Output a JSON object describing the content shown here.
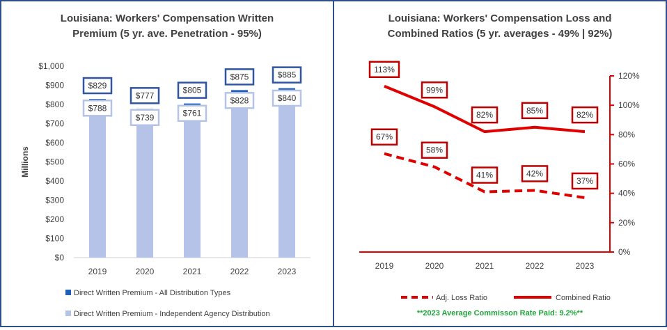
{
  "chart_data": [
    {
      "type": "bar",
      "title_lines": [
        "Louisiana: Workers' Compensation Written",
        "Premium (5 yr. ave. Penetration - 95%)"
      ],
      "ylabel": "Millions",
      "ylim": [
        0,
        1000
      ],
      "yticks": [
        "$0",
        "$100",
        "$200",
        "$300",
        "$400",
        "$500",
        "$600",
        "$700",
        "$800",
        "$900",
        "$1,000"
      ],
      "categories": [
        "2019",
        "2020",
        "2021",
        "2022",
        "2023"
      ],
      "series": [
        {
          "name": "Direct Written Premium - All Distribution Types",
          "values": [
            829,
            777,
            805,
            875,
            885
          ],
          "labels": [
            "$829",
            "$777",
            "$805",
            "$875",
            "$885"
          ],
          "color": "#1F5FB8"
        },
        {
          "name": "Direct Written Premium - Independent Agency Distribution",
          "values": [
            788,
            739,
            761,
            828,
            840
          ],
          "labels": [
            "$788",
            "$739",
            "$761",
            "$828",
            "$840"
          ],
          "color": "#B4C3E7"
        }
      ]
    },
    {
      "type": "line",
      "title_lines": [
        "Louisiana: Workers' Compensation Loss and",
        "Combined Ratios (5 yr. averages - 49% | 92%)"
      ],
      "ylim": [
        0,
        120
      ],
      "yticks": [
        "0%",
        "20%",
        "40%",
        "60%",
        "80%",
        "100%",
        "120%"
      ],
      "categories": [
        "2019",
        "2020",
        "2021",
        "2022",
        "2023"
      ],
      "series": [
        {
          "name": "Adj. Loss Ratio",
          "values": [
            67,
            58,
            41,
            42,
            37
          ],
          "labels": [
            "67%",
            "58%",
            "41%",
            "42%",
            "37%"
          ],
          "style": "dashed",
          "color": "#E00000"
        },
        {
          "name": "Combined Ratio",
          "values": [
            113,
            99,
            82,
            85,
            82
          ],
          "labels": [
            "113%",
            "99%",
            "82%",
            "85%",
            "82%"
          ],
          "style": "solid",
          "color": "#E00000"
        }
      ],
      "footnote": "**2023 Average Commisson Rate Paid: 9.2%**"
    }
  ]
}
